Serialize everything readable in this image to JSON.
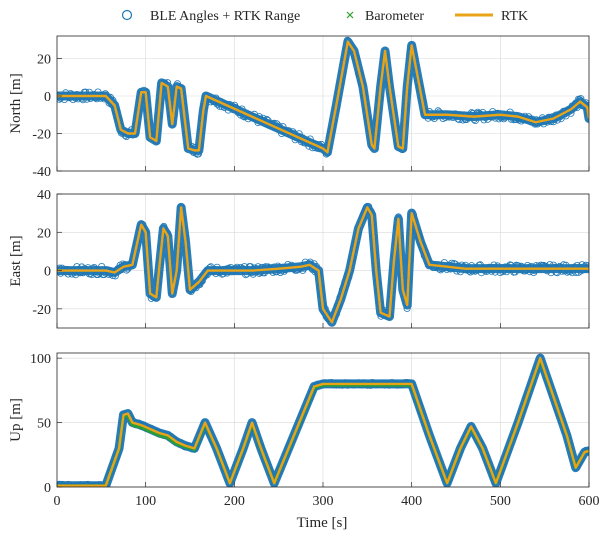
{
  "chart_data": {
    "type": "line",
    "xlabel": "Time [s]",
    "xlim": [
      0,
      600
    ],
    "xticks": [
      0,
      100,
      200,
      300,
      400,
      500,
      600
    ],
    "grid": true,
    "legend": {
      "placement": "top-center",
      "orientation": "horizontal",
      "entries": [
        {
          "label": "BLE Angles + RTK Range",
          "marker": "circle",
          "color": "#1f77b4"
        },
        {
          "label": "Barometer",
          "marker": "x",
          "color": "#2ca02c"
        },
        {
          "label": "RTK",
          "marker": "line",
          "color": "#e8a317"
        }
      ]
    },
    "subplots": [
      {
        "ylabel": "North [m]",
        "ylim": [
          -40,
          32
        ],
        "yticks": [
          -40,
          -20,
          0,
          20
        ],
        "series": [
          {
            "name": "RTK",
            "x": [
              0,
              55,
              65,
              72,
              80,
              88,
              95,
              100,
              105,
              112,
              118,
              125,
              130,
              135,
              140,
              148,
              155,
              160,
              165,
              168,
              300,
              305,
              315,
              328,
              335,
              345,
              355,
              358,
              365,
              370,
              375,
              385,
              390,
              395,
              400,
              415,
              440,
              470,
              500,
              520,
              540,
              560,
              580,
              590,
              598,
              600
            ],
            "y": [
              0,
              0,
              -5,
              -18,
              -20,
              -20,
              2,
              2,
              -22,
              -24,
              7,
              5,
              -15,
              5,
              4,
              -28,
              -29,
              -29,
              -8,
              0,
              -28,
              -30,
              -5,
              29,
              24,
              5,
              -26,
              -28,
              5,
              24,
              5,
              -27,
              -28,
              5,
              27,
              -10,
              -10,
              -11,
              -10,
              -11,
              -14,
              -12,
              -7,
              -3,
              -6,
              -12
            ]
          }
        ]
      },
      {
        "ylabel": "East [m]",
        "ylim": [
          -30,
          40
        ],
        "yticks": [
          -20,
          0,
          20,
          40
        ],
        "series": [
          {
            "name": "RTK",
            "x": [
              0,
              55,
              65,
              75,
              85,
              95,
              100,
              105,
              112,
              115,
              120,
              125,
              130,
              135,
              140,
              145,
              150,
              160,
              170,
              180,
              200,
              220,
              250,
              275,
              285,
              295,
              300,
              310,
              320,
              330,
              340,
              350,
              355,
              360,
              365,
              375,
              380,
              385,
              390,
              395,
              400,
              410,
              420,
              440,
              460,
              480,
              500,
              520,
              540,
              560,
              580,
              600
            ],
            "y": [
              0,
              0,
              -1,
              2,
              3,
              24,
              20,
              -12,
              -14,
              0,
              22,
              18,
              -12,
              0,
              33,
              15,
              -10,
              -6,
              0,
              0,
              0,
              0,
              1,
              2,
              3,
              0,
              -20,
              -27,
              -15,
              0,
              22,
              33,
              29,
              0,
              -22,
              -24,
              5,
              27,
              -10,
              -18,
              30,
              15,
              3,
              2,
              1,
              1,
              1,
              1,
              1,
              1,
              1,
              1
            ]
          }
        ]
      },
      {
        "ylabel": "Up [m]",
        "ylim": [
          0,
          104
        ],
        "yticks": [
          0,
          50,
          100
        ],
        "series": [
          {
            "name": "RTK",
            "x": [
              0,
              55,
              70,
              75,
              80,
              85,
              95,
              105,
              115,
              125,
              135,
              145,
              155,
              167,
              180,
              195,
              210,
              220,
              230,
              245,
              290,
              300,
              400,
              420,
              440,
              455,
              467,
              480,
              495,
              520,
              545,
              560,
              575,
              585,
              595,
              600
            ],
            "y": [
              1,
              1,
              30,
              56,
              57,
              50,
              48,
              45,
              42,
              40,
              35,
              32,
              30,
              50,
              30,
              3,
              30,
              50,
              30,
              3,
              78,
              80,
              80,
              40,
              3,
              30,
              47,
              30,
              3,
              50,
              100,
              70,
              40,
              15,
              27,
              28
            ]
          },
          {
            "name": "Barometer",
            "x": [
              0,
              55,
              70,
              75,
              80,
              85,
              95,
              105,
              115,
              125,
              135,
              145,
              155,
              167,
              180,
              195,
              210,
              220,
              230,
              245,
              290,
              300,
              400,
              420,
              440,
              455,
              467,
              480,
              495,
              520,
              545,
              560,
              575,
              585,
              595,
              600
            ],
            "y": [
              1,
              1,
              30,
              55,
              55,
              48,
              46,
              43,
              40,
              38,
              33,
              31,
              29,
              49,
              30,
              3,
              30,
              49,
              30,
              3,
              77,
              79,
              79,
              40,
              3,
              30,
              46,
              30,
              3,
              50,
              99,
              70,
              40,
              15,
              27,
              28
            ]
          }
        ]
      }
    ]
  }
}
